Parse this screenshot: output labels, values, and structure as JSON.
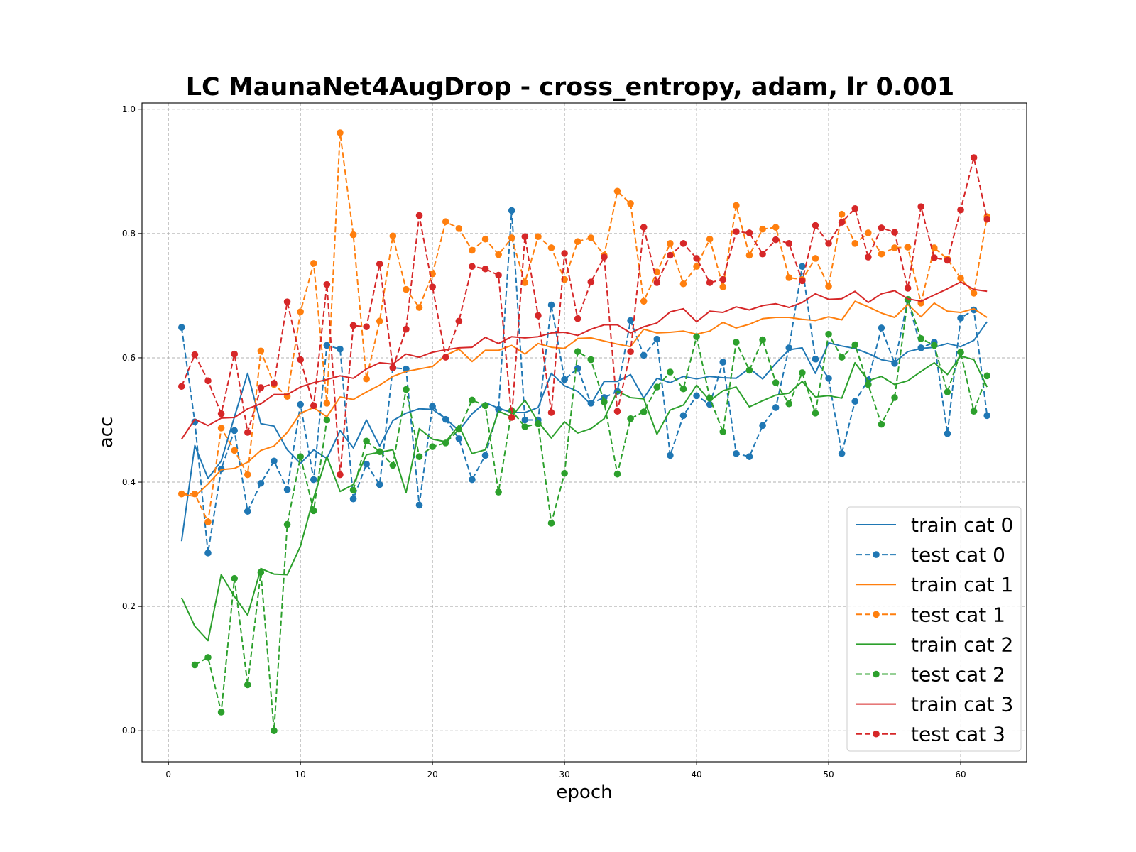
{
  "chart_data": {
    "type": "line",
    "title": "LC MaunaNet4AugDrop - cross_entropy, adam, lr 0.001",
    "xlabel": "epoch",
    "ylabel": "acc",
    "xlim": [
      -2,
      65
    ],
    "ylim": [
      -0.05,
      1.01
    ],
    "xticks": [
      0,
      10,
      20,
      30,
      40,
      50,
      60
    ],
    "yticks": [
      0.0,
      0.2,
      0.4,
      0.6,
      0.8,
      1.0
    ],
    "ytick_labels": [
      "0.0",
      "0.2",
      "0.4",
      "0.6",
      "0.8",
      "1.0"
    ],
    "grid": true,
    "legend_position": "bottom-right",
    "x": [
      1,
      2,
      3,
      4,
      5,
      6,
      7,
      8,
      9,
      10,
      11,
      12,
      13,
      14,
      15,
      16,
      17,
      18,
      19,
      20,
      21,
      22,
      23,
      24,
      25,
      26,
      27,
      28,
      29,
      30,
      31,
      32,
      33,
      34,
      35,
      36,
      37,
      38,
      39,
      40,
      41,
      42,
      43,
      44,
      45,
      46,
      47,
      48,
      49,
      50,
      51,
      52,
      53,
      54,
      55,
      56,
      57,
      58,
      59,
      60,
      61,
      62
    ],
    "series": [
      {
        "name": "train cat 0",
        "style": "solid",
        "color": "#1f77b4",
        "values": [
          0.305,
          0.459,
          0.406,
          0.434,
          0.505,
          0.575,
          0.494,
          0.49,
          0.452,
          0.43,
          0.452,
          0.438,
          0.483,
          0.455,
          0.5,
          0.458,
          0.499,
          0.511,
          0.518,
          0.517,
          0.502,
          0.483,
          0.51,
          0.528,
          0.519,
          0.512,
          0.512,
          0.52,
          0.575,
          0.555,
          0.546,
          0.525,
          0.562,
          0.562,
          0.573,
          0.535,
          0.567,
          0.56,
          0.57,
          0.566,
          0.57,
          0.568,
          0.567,
          0.583,
          0.566,
          0.591,
          0.613,
          0.616,
          0.575,
          0.624,
          0.619,
          0.615,
          0.607,
          0.597,
          0.593,
          0.61,
          0.615,
          0.617,
          0.623,
          0.618,
          0.628,
          0.658
        ]
      },
      {
        "name": "test cat 0",
        "style": "dashed",
        "color": "#1f77b4",
        "values": [
          0.649,
          0.497,
          0.286,
          0.421,
          0.483,
          0.353,
          0.398,
          0.434,
          0.388,
          0.525,
          0.404,
          0.62,
          0.614,
          0.373,
          0.429,
          0.396,
          0.584,
          0.582,
          0.363,
          0.522,
          0.501,
          0.47,
          0.404,
          0.443,
          0.517,
          0.837,
          0.5,
          0.5,
          0.685,
          0.565,
          0.583,
          0.527,
          0.536,
          0.546,
          0.66,
          0.604,
          0.63,
          0.443,
          0.507,
          0.539,
          0.525,
          0.593,
          0.446,
          0.441,
          0.491,
          0.52,
          0.616,
          0.747,
          0.598,
          0.567,
          0.446,
          0.53,
          0.564,
          0.648,
          0.591,
          0.693,
          0.616,
          0.625,
          0.478,
          0.664,
          0.677,
          0.507
        ]
      },
      {
        "name": "train cat 1",
        "style": "solid",
        "color": "#ff7f0e",
        "values": [
          0.381,
          0.377,
          0.397,
          0.42,
          0.422,
          0.432,
          0.451,
          0.458,
          0.48,
          0.511,
          0.52,
          0.505,
          0.537,
          0.533,
          0.545,
          0.556,
          0.57,
          0.578,
          0.582,
          0.586,
          0.604,
          0.614,
          0.594,
          0.612,
          0.612,
          0.62,
          0.606,
          0.623,
          0.617,
          0.615,
          0.631,
          0.632,
          0.627,
          0.622,
          0.618,
          0.646,
          0.64,
          0.641,
          0.643,
          0.638,
          0.643,
          0.657,
          0.648,
          0.654,
          0.663,
          0.665,
          0.665,
          0.662,
          0.66,
          0.666,
          0.661,
          0.691,
          0.682,
          0.672,
          0.665,
          0.686,
          0.666,
          0.688,
          0.675,
          0.673,
          0.679,
          0.665
        ]
      },
      {
        "name": "test cat 1",
        "style": "dashed",
        "color": "#ff7f0e",
        "values": [
          0.381,
          0.381,
          0.336,
          0.487,
          0.451,
          0.412,
          0.611,
          0.557,
          0.538,
          0.674,
          0.752,
          0.527,
          0.962,
          0.798,
          0.566,
          0.659,
          0.796,
          0.71,
          0.681,
          0.735,
          0.819,
          0.808,
          0.773,
          0.791,
          0.766,
          0.793,
          0.721,
          0.795,
          0.777,
          0.726,
          0.787,
          0.793,
          0.765,
          0.868,
          0.848,
          0.691,
          0.738,
          0.784,
          0.719,
          0.747,
          0.791,
          0.714,
          0.845,
          0.765,
          0.807,
          0.81,
          0.729,
          0.726,
          0.76,
          0.715,
          0.831,
          0.784,
          0.801,
          0.767,
          0.777,
          0.778,
          0.688,
          0.777,
          0.759,
          0.728,
          0.704,
          0.827
        ]
      },
      {
        "name": "train cat 2",
        "style": "solid",
        "color": "#2ca02c",
        "values": [
          0.214,
          0.168,
          0.145,
          0.251,
          0.216,
          0.186,
          0.261,
          0.252,
          0.251,
          0.297,
          0.375,
          0.441,
          0.385,
          0.396,
          0.444,
          0.448,
          0.452,
          0.383,
          0.486,
          0.469,
          0.465,
          0.491,
          0.446,
          0.452,
          0.514,
          0.505,
          0.532,
          0.497,
          0.471,
          0.497,
          0.479,
          0.486,
          0.502,
          0.546,
          0.536,
          0.534,
          0.477,
          0.516,
          0.524,
          0.556,
          0.531,
          0.547,
          0.553,
          0.521,
          0.531,
          0.54,
          0.543,
          0.562,
          0.537,
          0.539,
          0.535,
          0.592,
          0.563,
          0.57,
          0.557,
          0.563,
          0.578,
          0.592,
          0.573,
          0.603,
          0.597,
          0.553
        ]
      },
      {
        "name": "test cat 2",
        "style": "dashed",
        "color": "#2ca02c",
        "values": [
          null,
          0.106,
          0.118,
          0.03,
          0.245,
          0.074,
          0.255,
          0.0,
          0.332,
          0.441,
          0.354,
          0.5,
          null,
          0.387,
          0.466,
          0.449,
          0.427,
          0.549,
          0.441,
          0.457,
          0.463,
          0.485,
          0.532,
          0.523,
          0.384,
          0.515,
          0.489,
          0.494,
          0.334,
          0.414,
          0.61,
          0.597,
          0.529,
          0.413,
          0.502,
          0.513,
          0.553,
          0.577,
          0.55,
          0.634,
          0.535,
          0.481,
          0.625,
          0.58,
          0.629,
          0.56,
          0.526,
          0.576,
          0.511,
          0.638,
          0.601,
          0.621,
          0.557,
          0.493,
          0.536,
          0.694,
          0.631,
          0.62,
          0.545,
          0.609,
          0.514,
          0.571
        ]
      },
      {
        "name": "train cat 3",
        "style": "solid",
        "color": "#d62728",
        "values": [
          0.469,
          0.501,
          0.491,
          0.503,
          0.504,
          0.518,
          0.526,
          0.541,
          0.541,
          0.553,
          0.56,
          0.565,
          0.571,
          0.567,
          0.582,
          0.592,
          0.59,
          0.606,
          0.601,
          0.609,
          0.613,
          0.616,
          0.617,
          0.633,
          0.623,
          0.634,
          0.632,
          0.634,
          0.64,
          0.641,
          0.636,
          0.646,
          0.653,
          0.653,
          0.64,
          0.65,
          0.656,
          0.674,
          0.679,
          0.658,
          0.675,
          0.673,
          0.682,
          0.677,
          0.684,
          0.687,
          0.681,
          0.689,
          0.703,
          0.694,
          0.695,
          0.707,
          0.689,
          0.703,
          0.708,
          0.695,
          0.691,
          0.701,
          0.711,
          0.722,
          0.71,
          0.707
        ]
      },
      {
        "name": "test cat 3",
        "style": "dashed",
        "color": "#d62728",
        "values": [
          0.554,
          0.605,
          0.563,
          0.51,
          0.606,
          0.48,
          0.552,
          0.559,
          0.69,
          0.597,
          0.523,
          0.718,
          0.412,
          0.652,
          0.65,
          0.751,
          0.584,
          0.646,
          0.829,
          0.714,
          0.601,
          0.659,
          0.747,
          0.743,
          0.733,
          0.504,
          0.795,
          0.668,
          0.512,
          0.768,
          0.663,
          0.722,
          0.762,
          0.514,
          0.61,
          0.81,
          0.721,
          0.765,
          0.784,
          0.76,
          0.721,
          0.726,
          0.803,
          0.801,
          0.767,
          0.79,
          0.784,
          0.724,
          0.813,
          0.784,
          0.818,
          0.84,
          0.762,
          0.809,
          0.802,
          0.712,
          0.843,
          0.761,
          0.757,
          0.838,
          0.922,
          0.823
        ]
      }
    ]
  }
}
